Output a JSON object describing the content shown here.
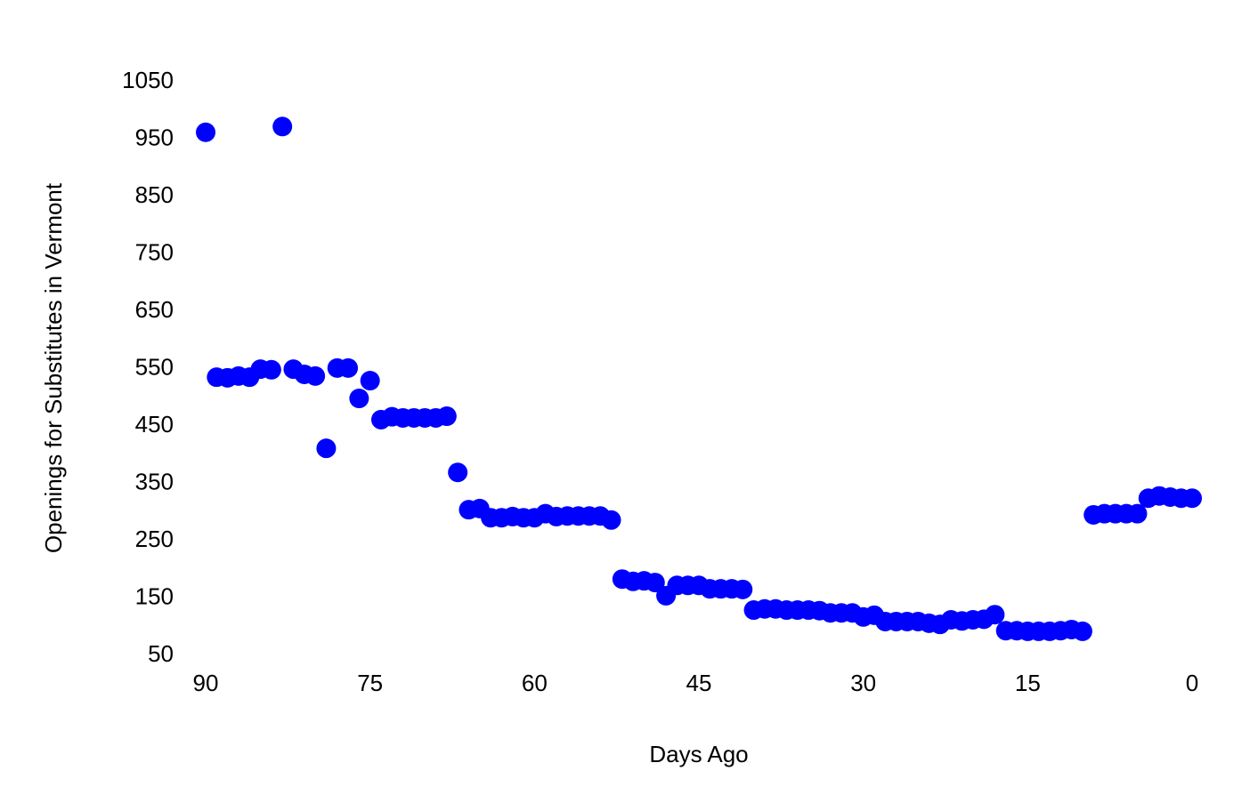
{
  "chart_data": {
    "type": "scatter",
    "xlabel": "Days Ago",
    "ylabel": "Openings for Substitutes in Vermont",
    "x": [
      90,
      89,
      88,
      87,
      86,
      85,
      84,
      83,
      82,
      81,
      80,
      79,
      78,
      77,
      76,
      75,
      74,
      73,
      72,
      71,
      70,
      69,
      68,
      67,
      66,
      65,
      64,
      63,
      62,
      61,
      60,
      59,
      58,
      57,
      56,
      55,
      54,
      53,
      52,
      51,
      50,
      49,
      48,
      47,
      46,
      45,
      44,
      43,
      42,
      41,
      40,
      39,
      38,
      37,
      36,
      35,
      34,
      33,
      32,
      31,
      30,
      29,
      28,
      27,
      26,
      25,
      24,
      23,
      22,
      21,
      20,
      19,
      18,
      17,
      16,
      15,
      14,
      13,
      12,
      11,
      10,
      9,
      8,
      7,
      6,
      5,
      4,
      3,
      2,
      1,
      0
    ],
    "values": [
      962,
      535,
      534,
      537,
      535,
      549,
      548,
      972,
      549,
      540,
      537,
      411,
      551,
      551,
      498,
      529,
      461,
      466,
      464,
      464,
      464,
      464,
      467,
      369,
      304,
      306,
      290,
      290,
      292,
      290,
      290,
      297,
      292,
      293,
      293,
      293,
      293,
      286,
      183,
      179,
      180,
      177,
      154,
      172,
      172,
      172,
      166,
      166,
      166,
      165,
      129,
      131,
      131,
      129,
      129,
      129,
      128,
      124,
      124,
      124,
      117,
      120,
      109,
      109,
      109,
      109,
      106,
      104,
      112,
      110,
      112,
      113,
      121,
      93,
      93,
      92,
      92,
      92,
      93,
      95,
      92,
      295,
      297,
      297,
      297,
      297,
      324,
      328,
      326,
      324,
      324
    ],
    "color": "#0000ff",
    "xlim": [
      90,
      0
    ],
    "xticks": [
      90,
      75,
      60,
      45,
      30,
      15,
      0
    ],
    "ylim": [
      50,
      1050
    ],
    "yticks": [
      50,
      150,
      250,
      350,
      450,
      550,
      650,
      750,
      850,
      950,
      1050
    ],
    "grid": false
  }
}
